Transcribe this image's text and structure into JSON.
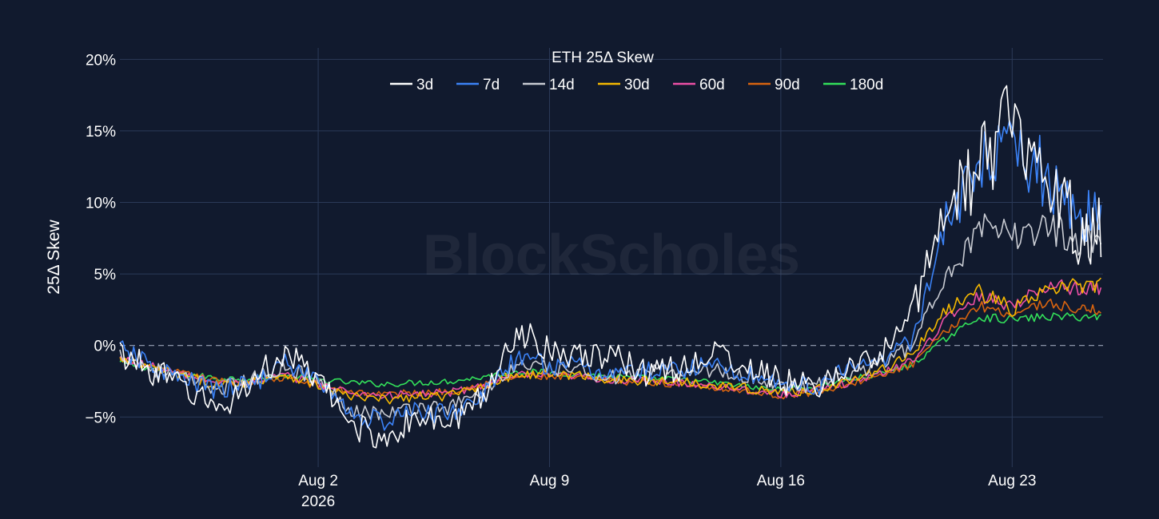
{
  "chart_data": {
    "type": "line",
    "title": "ETH 25Δ Skew",
    "xlabel": "",
    "ylabel": "25Δ Skew",
    "watermark": "BlockScholes",
    "ylim": [
      -8.5,
      20.8
    ],
    "xlim": [
      "2026-07-27T00:00",
      "2026-08-25T18:00"
    ],
    "y_ticks": [
      {
        "value": 20,
        "label": "20%"
      },
      {
        "value": 15,
        "label": "15%"
      },
      {
        "value": 10,
        "label": "10%"
      },
      {
        "value": 5,
        "label": "5%"
      },
      {
        "value": 0,
        "label": "0%"
      },
      {
        "value": -5,
        "label": "−5%"
      }
    ],
    "x_ticks": [
      {
        "date": "2026-08-02",
        "label": "Aug 2",
        "sublabel": "2026"
      },
      {
        "date": "2026-08-09",
        "label": "Aug 9",
        "sublabel": ""
      },
      {
        "date": "2026-08-16",
        "label": "Aug 16",
        "sublabel": ""
      },
      {
        "date": "2026-08-23",
        "label": "Aug 23",
        "sublabel": ""
      }
    ],
    "zero_line": true,
    "grid": true,
    "legend_position": "top-center",
    "x": [
      "2026-07-27",
      "2026-07-28",
      "2026-07-29",
      "2026-07-30",
      "2026-07-31",
      "2026-08-01",
      "2026-08-02",
      "2026-08-03",
      "2026-08-04",
      "2026-08-05",
      "2026-08-06",
      "2026-08-07",
      "2026-08-08",
      "2026-08-09",
      "2026-08-10",
      "2026-08-11",
      "2026-08-12",
      "2026-08-13",
      "2026-08-14",
      "2026-08-15",
      "2026-08-16",
      "2026-08-17",
      "2026-08-18",
      "2026-08-19",
      "2026-08-20",
      "2026-08-21",
      "2026-08-22",
      "2026-08-23",
      "2026-08-24",
      "2026-08-25"
    ],
    "series": [
      {
        "name": "3d",
        "color": "#ffffff",
        "values": [
          -0.5,
          -1.8,
          -3.0,
          -4.5,
          -2.5,
          -0.5,
          -2.5,
          -5.5,
          -6.5,
          -5.0,
          -5.5,
          -3.5,
          1.0,
          0.0,
          -1.0,
          -0.7,
          -2.0,
          -1.5,
          -0.5,
          -1.5,
          -2.5,
          -3.0,
          -1.5,
          -1.0,
          2.5,
          10.0,
          12.0,
          16.5,
          13.0,
          8.0
        ]
      },
      {
        "name": "7d",
        "color": "#3b82f6",
        "values": [
          -0.3,
          -1.5,
          -2.5,
          -3.2,
          -2.6,
          -1.3,
          -2.4,
          -4.8,
          -5.3,
          -4.6,
          -4.8,
          -3.3,
          -1.0,
          -1.3,
          -1.6,
          -2.0,
          -1.8,
          -1.6,
          -1.4,
          -2.0,
          -2.6,
          -2.9,
          -1.8,
          -1.0,
          0.5,
          8.5,
          12.5,
          13.5,
          12.0,
          9.0
        ]
      },
      {
        "name": "14d",
        "color": "#c8cbd2",
        "values": [
          -0.6,
          -1.6,
          -2.4,
          -3.0,
          -2.4,
          -1.4,
          -2.5,
          -4.4,
          -4.8,
          -4.3,
          -4.3,
          -3.2,
          -1.4,
          -1.6,
          -1.8,
          -2.2,
          -1.9,
          -1.8,
          -1.7,
          -2.2,
          -2.7,
          -2.9,
          -2.0,
          -1.3,
          0.0,
          5.0,
          8.0,
          7.5,
          8.5,
          7.5
        ]
      },
      {
        "name": "30d",
        "color": "#f5b800",
        "values": [
          -1.0,
          -1.6,
          -2.2,
          -2.8,
          -2.5,
          -2.0,
          -2.8,
          -3.6,
          -3.8,
          -3.6,
          -3.5,
          -2.8,
          -2.0,
          -2.0,
          -2.1,
          -2.4,
          -2.5,
          -2.5,
          -2.7,
          -3.0,
          -3.3,
          -3.1,
          -2.5,
          -1.8,
          -0.5,
          2.5,
          3.8,
          2.5,
          3.8,
          4.2
        ]
      },
      {
        "name": "60d",
        "color": "#ec4fa5",
        "values": [
          -0.9,
          -1.5,
          -2.1,
          -2.6,
          -2.5,
          -2.1,
          -2.7,
          -3.3,
          -3.5,
          -3.4,
          -3.3,
          -2.8,
          -2.1,
          -2.1,
          -2.2,
          -2.4,
          -2.5,
          -2.6,
          -2.8,
          -3.1,
          -3.4,
          -3.2,
          -2.6,
          -2.0,
          -1.0,
          1.8,
          3.5,
          2.8,
          4.2,
          4.0
        ]
      },
      {
        "name": "90d",
        "color": "#d9640f",
        "values": [
          -1.1,
          -1.6,
          -2.0,
          -2.5,
          -2.5,
          -2.3,
          -2.8,
          -3.2,
          -3.4,
          -3.3,
          -3.2,
          -2.7,
          -2.2,
          -2.2,
          -2.3,
          -2.5,
          -2.6,
          -2.7,
          -2.9,
          -3.2,
          -3.5,
          -3.3,
          -2.7,
          -2.2,
          -1.3,
          1.0,
          2.8,
          2.2,
          3.0,
          2.5
        ]
      },
      {
        "name": "180d",
        "color": "#33e05a",
        "values": [
          -1.2,
          -1.6,
          -2.0,
          -2.3,
          -2.3,
          -2.1,
          -2.4,
          -2.6,
          -2.7,
          -2.6,
          -2.5,
          -2.2,
          -1.8,
          -1.9,
          -2.0,
          -2.2,
          -2.3,
          -2.4,
          -2.6,
          -2.9,
          -3.1,
          -2.9,
          -2.4,
          -2.0,
          -1.3,
          0.5,
          2.0,
          1.8,
          2.0,
          2.0
        ]
      }
    ]
  }
}
